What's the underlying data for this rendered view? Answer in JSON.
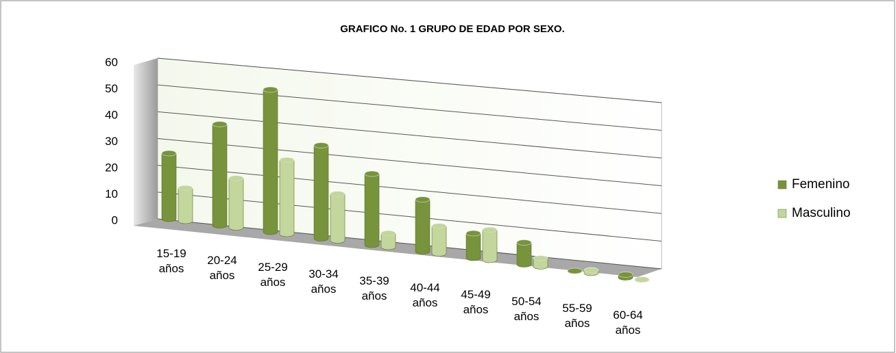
{
  "chart_data": {
    "type": "bar",
    "title": "GRAFICO No. 1  GRUPO DE EDAD POR SEXO.",
    "categories": [
      "15-19 años",
      "20-24 años",
      "25-29 años",
      "30-34 años",
      "35-39 años",
      "40-44 años",
      "45-49 años",
      "50-54 años",
      "55-59 años",
      "60-64 años"
    ],
    "series": [
      {
        "name": "Femenino",
        "color": "#77933c",
        "values": [
          24,
          37,
          52,
          34,
          26,
          19,
          9,
          8,
          0,
          1
        ]
      },
      {
        "name": "Masculino",
        "color": "#c3d69b",
        "values": [
          12,
          18,
          27,
          17,
          5,
          10,
          11,
          3,
          1,
          0
        ]
      }
    ],
    "ylim": [
      0,
      60
    ],
    "yticks": [
      0,
      10,
      20,
      30,
      40,
      50,
      60
    ],
    "grid": true,
    "legend": "right"
  }
}
